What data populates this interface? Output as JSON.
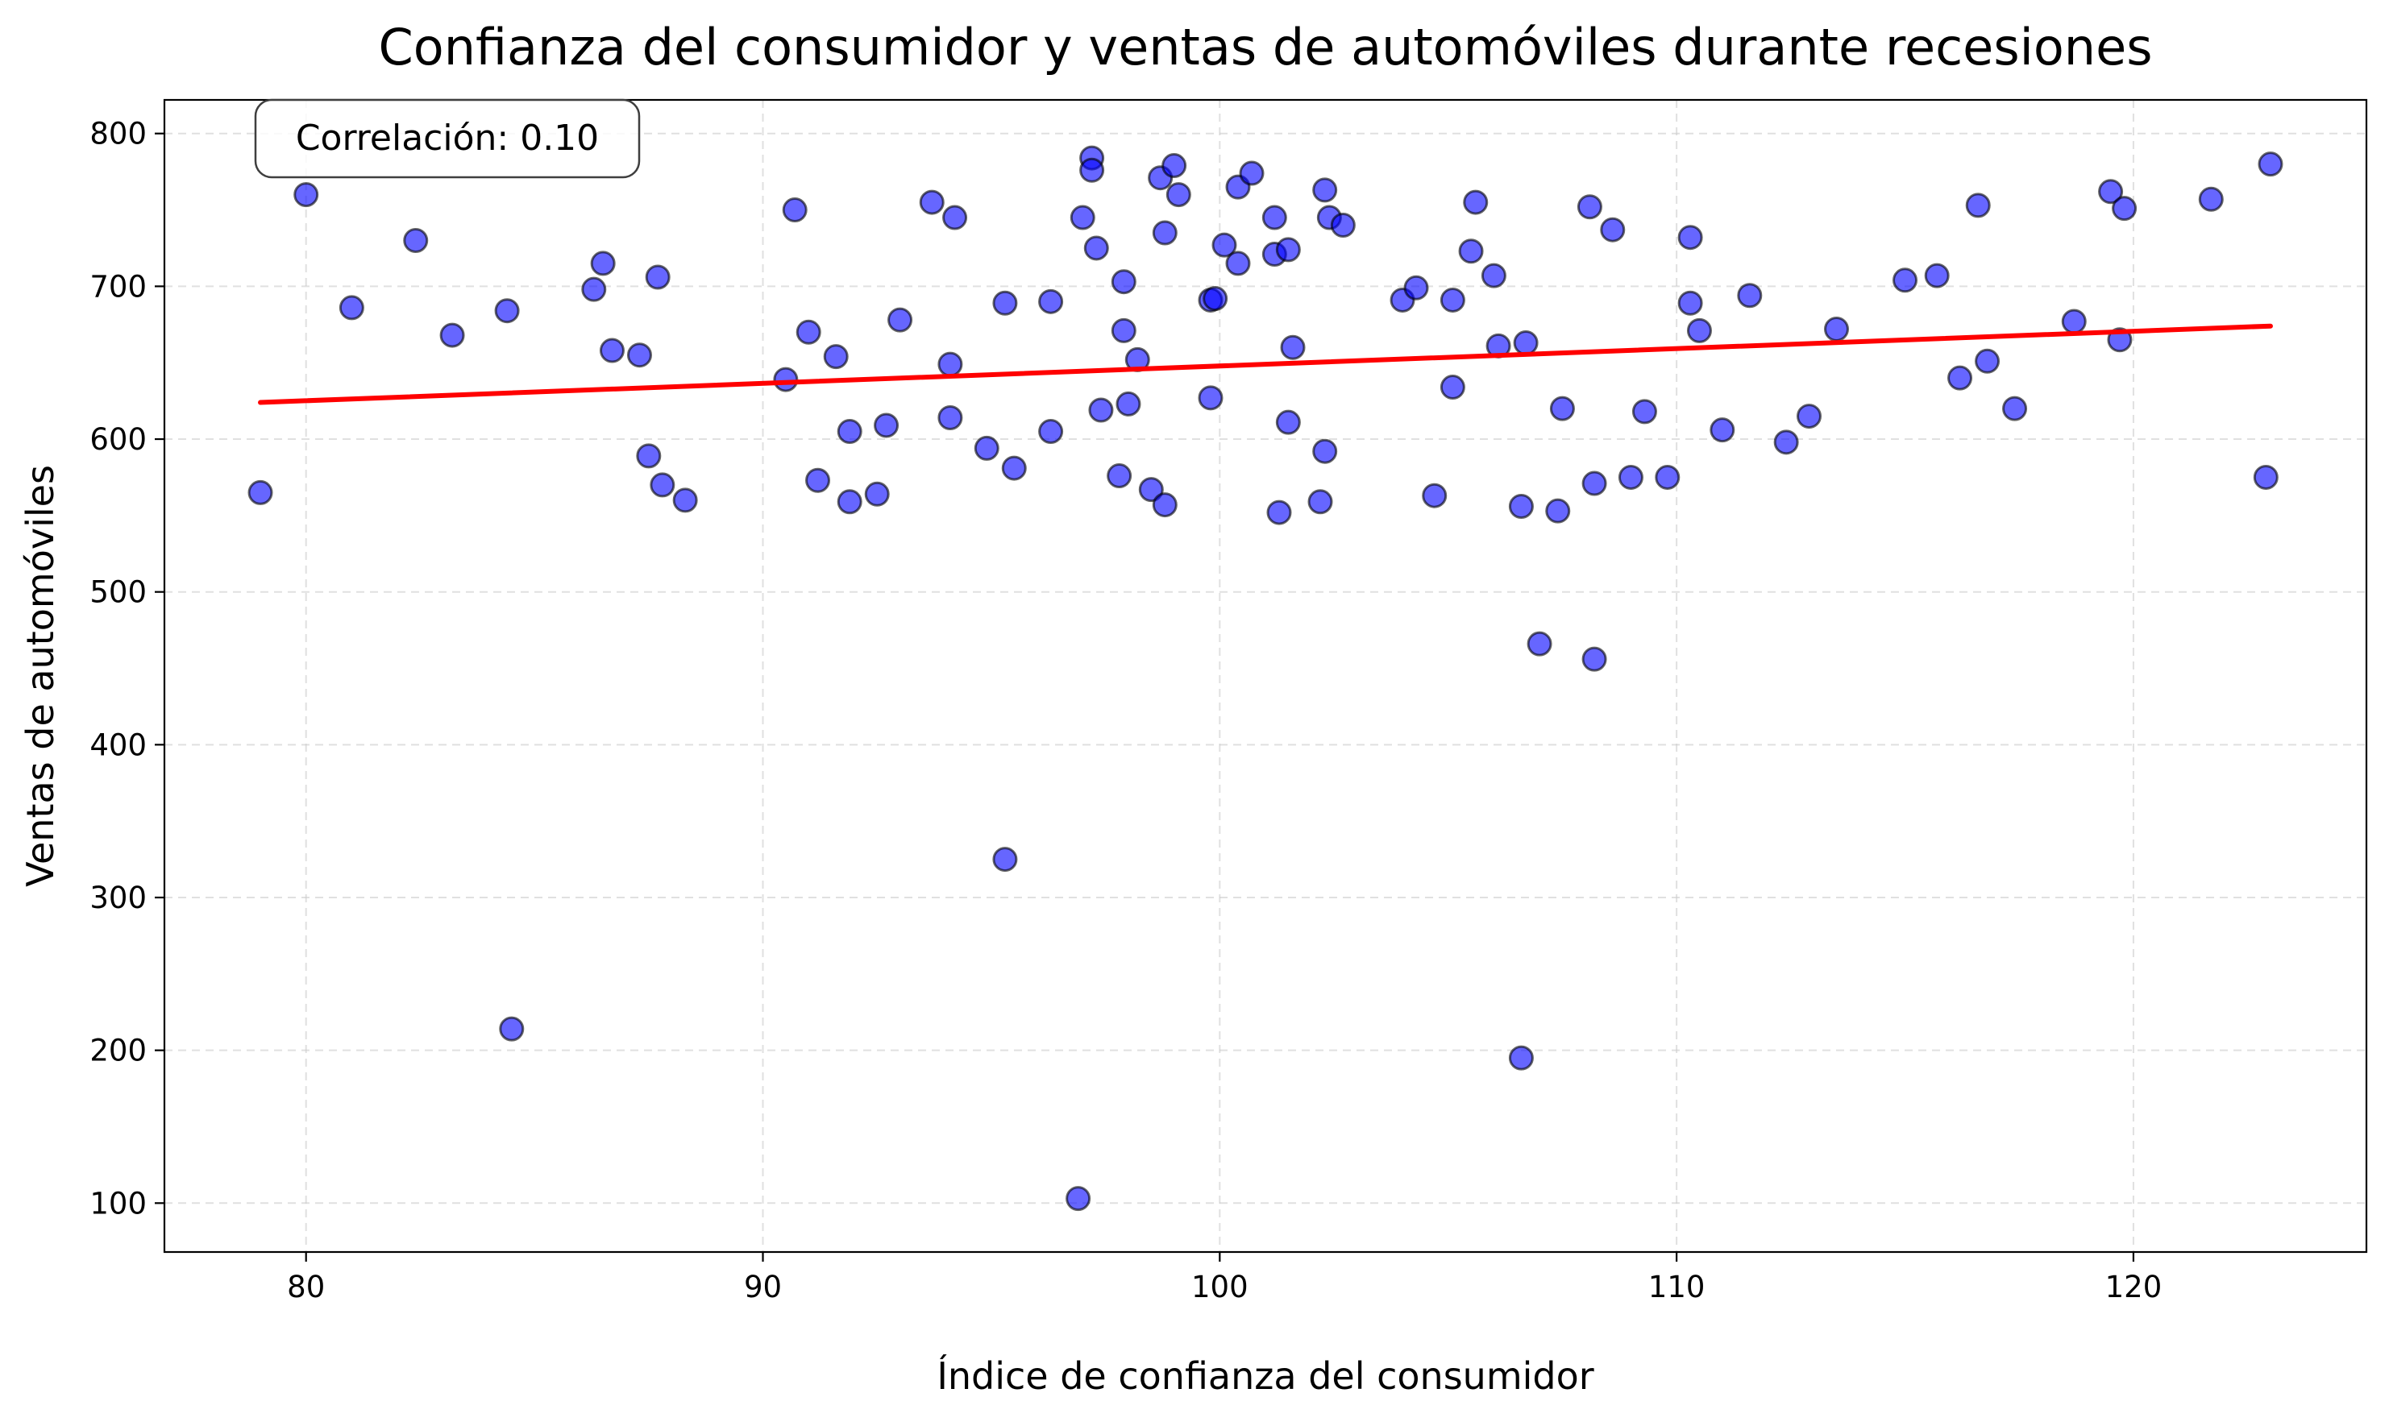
{
  "chart_data": {
    "type": "scatter",
    "title": "Confianza del consumidor y ventas de automóviles durante recesiones",
    "xlabel": "Índice de confianza del consumidor",
    "ylabel": "Ventas de automóviles",
    "xlim": [
      76.9,
      125.1
    ],
    "ylim": [
      68,
      822
    ],
    "xticks": [
      80,
      90,
      100,
      110,
      120
    ],
    "yticks": [
      100,
      200,
      300,
      400,
      500,
      600,
      700,
      800
    ],
    "grid": true,
    "annotation": "Correlación: 0.10",
    "colors": {
      "points": "#0000ff",
      "point_edge": "#000000",
      "trend": "#ff0000",
      "grid": "#cccccc"
    },
    "trendline": {
      "x": [
        79.0,
        123.0
      ],
      "y": [
        624,
        674
      ]
    },
    "points": [
      {
        "x": 79.0,
        "y": 565
      },
      {
        "x": 80.0,
        "y": 760
      },
      {
        "x": 81.0,
        "y": 686
      },
      {
        "x": 82.4,
        "y": 730
      },
      {
        "x": 83.2,
        "y": 668
      },
      {
        "x": 84.4,
        "y": 684
      },
      {
        "x": 84.5,
        "y": 214
      },
      {
        "x": 86.3,
        "y": 698
      },
      {
        "x": 86.5,
        "y": 715
      },
      {
        "x": 86.7,
        "y": 658
      },
      {
        "x": 87.3,
        "y": 655
      },
      {
        "x": 87.5,
        "y": 589
      },
      {
        "x": 87.7,
        "y": 706
      },
      {
        "x": 87.8,
        "y": 570
      },
      {
        "x": 88.3,
        "y": 560
      },
      {
        "x": 90.5,
        "y": 639
      },
      {
        "x": 90.7,
        "y": 750
      },
      {
        "x": 91.0,
        "y": 670
      },
      {
        "x": 91.2,
        "y": 573
      },
      {
        "x": 91.6,
        "y": 654
      },
      {
        "x": 91.9,
        "y": 605
      },
      {
        "x": 91.9,
        "y": 559
      },
      {
        "x": 92.5,
        "y": 564
      },
      {
        "x": 92.7,
        "y": 609
      },
      {
        "x": 93.0,
        "y": 678
      },
      {
        "x": 93.7,
        "y": 755
      },
      {
        "x": 94.1,
        "y": 614
      },
      {
        "x": 94.1,
        "y": 649
      },
      {
        "x": 94.2,
        "y": 745
      },
      {
        "x": 94.9,
        "y": 594
      },
      {
        "x": 95.3,
        "y": 325
      },
      {
        "x": 95.3,
        "y": 689
      },
      {
        "x": 95.5,
        "y": 581
      },
      {
        "x": 96.3,
        "y": 690
      },
      {
        "x": 96.3,
        "y": 605
      },
      {
        "x": 96.9,
        "y": 103
      },
      {
        "x": 97.0,
        "y": 745
      },
      {
        "x": 97.2,
        "y": 784
      },
      {
        "x": 97.2,
        "y": 776
      },
      {
        "x": 97.3,
        "y": 725
      },
      {
        "x": 97.4,
        "y": 619
      },
      {
        "x": 97.8,
        "y": 576
      },
      {
        "x": 97.9,
        "y": 703
      },
      {
        "x": 97.9,
        "y": 671
      },
      {
        "x": 98.0,
        "y": 623
      },
      {
        "x": 98.2,
        "y": 652
      },
      {
        "x": 98.5,
        "y": 567
      },
      {
        "x": 98.7,
        "y": 771
      },
      {
        "x": 98.8,
        "y": 735
      },
      {
        "x": 98.8,
        "y": 557
      },
      {
        "x": 99.0,
        "y": 779
      },
      {
        "x": 99.1,
        "y": 760
      },
      {
        "x": 99.8,
        "y": 627
      },
      {
        "x": 99.8,
        "y": 691
      },
      {
        "x": 99.9,
        "y": 692
      },
      {
        "x": 100.1,
        "y": 727
      },
      {
        "x": 100.4,
        "y": 715
      },
      {
        "x": 100.4,
        "y": 765
      },
      {
        "x": 100.7,
        "y": 774
      },
      {
        "x": 101.2,
        "y": 745
      },
      {
        "x": 101.2,
        "y": 721
      },
      {
        "x": 101.3,
        "y": 552
      },
      {
        "x": 101.5,
        "y": 724
      },
      {
        "x": 101.5,
        "y": 611
      },
      {
        "x": 101.6,
        "y": 660
      },
      {
        "x": 102.2,
        "y": 559
      },
      {
        "x": 102.3,
        "y": 592
      },
      {
        "x": 102.3,
        "y": 763
      },
      {
        "x": 102.4,
        "y": 745
      },
      {
        "x": 102.7,
        "y": 740
      },
      {
        "x": 104.0,
        "y": 691
      },
      {
        "x": 104.3,
        "y": 699
      },
      {
        "x": 104.7,
        "y": 563
      },
      {
        "x": 105.1,
        "y": 634
      },
      {
        "x": 105.1,
        "y": 691
      },
      {
        "x": 105.5,
        "y": 723
      },
      {
        "x": 105.6,
        "y": 755
      },
      {
        "x": 106.0,
        "y": 707
      },
      {
        "x": 106.1,
        "y": 661
      },
      {
        "x": 106.6,
        "y": 556
      },
      {
        "x": 106.6,
        "y": 195
      },
      {
        "x": 106.7,
        "y": 663
      },
      {
        "x": 107.0,
        "y": 466
      },
      {
        "x": 107.4,
        "y": 553
      },
      {
        "x": 107.5,
        "y": 620
      },
      {
        "x": 108.1,
        "y": 752
      },
      {
        "x": 108.2,
        "y": 571
      },
      {
        "x": 108.2,
        "y": 456
      },
      {
        "x": 108.6,
        "y": 737
      },
      {
        "x": 109.0,
        "y": 575
      },
      {
        "x": 109.3,
        "y": 618
      },
      {
        "x": 109.8,
        "y": 575
      },
      {
        "x": 110.3,
        "y": 732
      },
      {
        "x": 110.3,
        "y": 689
      },
      {
        "x": 110.5,
        "y": 671
      },
      {
        "x": 111.0,
        "y": 606
      },
      {
        "x": 111.6,
        "y": 694
      },
      {
        "x": 112.4,
        "y": 598
      },
      {
        "x": 112.9,
        "y": 615
      },
      {
        "x": 113.5,
        "y": 672
      },
      {
        "x": 115.0,
        "y": 704
      },
      {
        "x": 115.7,
        "y": 707
      },
      {
        "x": 116.2,
        "y": 640
      },
      {
        "x": 116.6,
        "y": 753
      },
      {
        "x": 116.8,
        "y": 651
      },
      {
        "x": 117.4,
        "y": 620
      },
      {
        "x": 118.7,
        "y": 677
      },
      {
        "x": 119.5,
        "y": 762
      },
      {
        "x": 119.7,
        "y": 665
      },
      {
        "x": 119.8,
        "y": 751
      },
      {
        "x": 121.7,
        "y": 757
      },
      {
        "x": 123.0,
        "y": 780
      },
      {
        "x": 122.9,
        "y": 575
      }
    ]
  }
}
